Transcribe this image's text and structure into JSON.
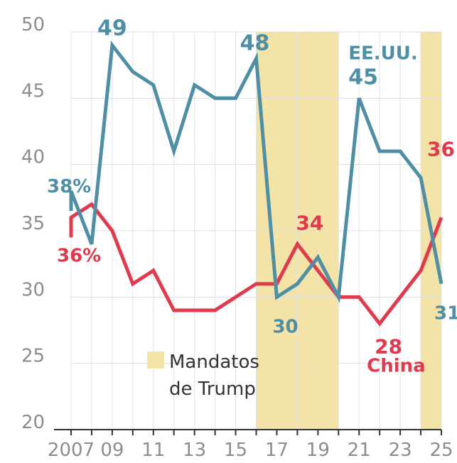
{
  "chart_data": {
    "type": "line",
    "x": [
      2007,
      2008,
      2009,
      2010,
      2011,
      2012,
      2013,
      2014,
      2015,
      2016,
      2017,
      2018,
      2019,
      2020,
      2021,
      2022,
      2023,
      2024,
      2025
    ],
    "xticks": [
      "2007",
      "09",
      "11",
      "13",
      "15",
      "17",
      "19",
      "21",
      "23",
      "25"
    ],
    "xtick_values": [
      2007,
      2009,
      2011,
      2013,
      2015,
      2017,
      2019,
      2021,
      2023,
      2025
    ],
    "yticks": [
      "20",
      "25",
      "30",
      "35",
      "40",
      "45",
      "50"
    ],
    "ylim": [
      20,
      50
    ],
    "xlim": [
      2007,
      2025
    ],
    "grid": true,
    "series": [
      {
        "name": "EE.UU.",
        "color": "#4f8fa6",
        "values": [
          38,
          34,
          49,
          47,
          46,
          41,
          46,
          45,
          45,
          48,
          30,
          31,
          33,
          30,
          45,
          41,
          41,
          39,
          31
        ]
      },
      {
        "name": "China",
        "color": "#e03a4e",
        "values": [
          36,
          37,
          35,
          31,
          32,
          29,
          29,
          29,
          30,
          31,
          31,
          34,
          32,
          30,
          30,
          28,
          30,
          32,
          36
        ]
      }
    ],
    "shaded_periods": [
      [
        2016,
        2020
      ],
      [
        2024,
        2025
      ]
    ],
    "shade_color": "#f3e3a6",
    "legend": {
      "label_line1": "Mandatos",
      "label_line2": "de Trump"
    },
    "annotations": [
      {
        "text": "38%",
        "series": 0,
        "x": 2007,
        "y": 38
      },
      {
        "text": "49",
        "series": 0,
        "x": 2009,
        "y": 49
      },
      {
        "text": "48",
        "series": 0,
        "x": 2016,
        "y": 48
      },
      {
        "text": "30",
        "series": 0,
        "x": 2017,
        "y": 30
      },
      {
        "text": "EE.UU.",
        "series": 0,
        "x": 2021,
        "y": 45
      },
      {
        "text": "45",
        "series": 0,
        "x": 2021,
        "y": 45
      },
      {
        "text": "31",
        "series": 0,
        "x": 2025,
        "y": 31
      },
      {
        "text": "36%",
        "series": 1,
        "x": 2007,
        "y": 36
      },
      {
        "text": "34",
        "series": 1,
        "x": 2018,
        "y": 34
      },
      {
        "text": "28",
        "series": 1,
        "x": 2022,
        "y": 28
      },
      {
        "text": "China",
        "series": 1,
        "x": 2022,
        "y": 28
      },
      {
        "text": "36",
        "series": 1,
        "x": 2025,
        "y": 36
      }
    ]
  }
}
